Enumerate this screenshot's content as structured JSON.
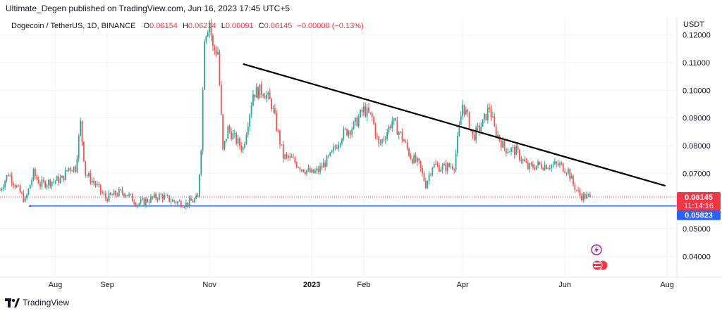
{
  "header": {
    "publisher_line": "Ultimate_Degen published on TradingView.com, Jun 16, 2023 17:45 UTC+5"
  },
  "legend": {
    "symbol": "Dogecoin / TetherUS, 1D, BINANCE",
    "o_label": "O",
    "o_value": "0.06154",
    "h_label": "H",
    "h_value": "0.06214",
    "l_label": "L",
    "l_value": "0.06091",
    "c_label": "C",
    "c_value": "0.06145",
    "change": "−0.00008 (−0.13%)"
  },
  "price_scale": {
    "currency": "USDT",
    "ticks": [
      "0.12000",
      "0.11000",
      "0.10000",
      "0.09000",
      "0.08000",
      "0.07000",
      "0.05000",
      "0.04000"
    ]
  },
  "last_price": {
    "price": "0.06145",
    "countdown": "11:14:16"
  },
  "support_label": "0.05823",
  "time_axis": {
    "labels": [
      "Aug",
      "Sep",
      "Nov",
      "2023",
      "Feb",
      "Apr",
      "Jun",
      "Aug"
    ],
    "emphasized": "2023"
  },
  "footer": {
    "brand": "TradingView"
  },
  "colors": {
    "up": "#26a69a",
    "down": "#ef5350",
    "support": "#2962ff",
    "trendline": "#000000",
    "last_price": "#f23645",
    "event_purple": "#9c27b0"
  },
  "chart_data": {
    "type": "candlestick",
    "title": "Dogecoin / TetherUS, 1D, BINANCE",
    "ylabel": "USDT",
    "ylim": [
      0.0325,
      0.1265
    ],
    "y_ticks": [
      0.12,
      0.11,
      0.1,
      0.09,
      0.08,
      0.07,
      0.05,
      0.04
    ],
    "x_range": [
      "2022-06-29",
      "2023-08-06"
    ],
    "x_ticks": [
      {
        "label": "Aug",
        "date": "2022-08-01"
      },
      {
        "label": "Sep",
        "date": "2022-09-01"
      },
      {
        "label": "Nov",
        "date": "2022-11-01"
      },
      {
        "label": "2023",
        "date": "2023-01-01"
      },
      {
        "label": "Feb",
        "date": "2023-02-01"
      },
      {
        "label": "Apr",
        "date": "2023-04-01"
      },
      {
        "label": "Jun",
        "date": "2023-06-01"
      },
      {
        "label": "Aug",
        "date": "2023-08-01"
      }
    ],
    "last_close": 0.06145,
    "horizontal_line": {
      "price": 0.05823,
      "from": "2022-07-17"
    },
    "trendline": {
      "from": {
        "date": "2022-11-21",
        "price": 0.1095
      },
      "to": {
        "date": "2023-07-31",
        "price": 0.0655
      }
    },
    "close_path": [
      [
        "2022-06-29",
        0.064
      ],
      [
        "2022-07-04",
        0.07
      ],
      [
        "2022-07-08",
        0.066
      ],
      [
        "2022-07-14",
        0.06
      ],
      [
        "2022-07-19",
        0.07
      ],
      [
        "2022-07-23",
        0.066
      ],
      [
        "2022-07-29",
        0.067
      ],
      [
        "2022-08-05",
        0.068
      ],
      [
        "2022-08-09",
        0.072
      ],
      [
        "2022-08-13",
        0.072
      ],
      [
        "2022-08-16",
        0.088
      ],
      [
        "2022-08-19",
        0.07
      ],
      [
        "2022-08-25",
        0.066
      ],
      [
        "2022-08-31",
        0.061
      ],
      [
        "2022-09-08",
        0.063
      ],
      [
        "2022-09-12",
        0.063
      ],
      [
        "2022-09-19",
        0.059
      ],
      [
        "2022-09-28",
        0.061
      ],
      [
        "2022-10-03",
        0.062
      ],
      [
        "2022-10-10",
        0.06
      ],
      [
        "2022-10-18",
        0.059
      ],
      [
        "2022-10-25",
        0.061
      ],
      [
        "2022-10-27",
        0.08
      ],
      [
        "2022-10-29",
        0.12
      ],
      [
        "2022-11-01",
        0.125
      ],
      [
        "2022-11-03",
        0.115
      ],
      [
        "2022-11-06",
        0.114
      ],
      [
        "2022-11-09",
        0.078
      ],
      [
        "2022-11-12",
        0.086
      ],
      [
        "2022-11-18",
        0.081
      ],
      [
        "2022-11-21",
        0.079
      ],
      [
        "2022-11-27",
        0.099
      ],
      [
        "2022-12-03",
        0.1
      ],
      [
        "2022-12-08",
        0.095
      ],
      [
        "2022-12-15",
        0.076
      ],
      [
        "2022-12-20",
        0.075
      ],
      [
        "2022-12-26",
        0.072
      ],
      [
        "2023-01-01",
        0.07
      ],
      [
        "2023-01-05",
        0.071
      ],
      [
        "2023-01-12",
        0.076
      ],
      [
        "2023-01-19",
        0.084
      ],
      [
        "2023-01-26",
        0.087
      ],
      [
        "2023-02-01",
        0.093
      ],
      [
        "2023-02-06",
        0.09
      ],
      [
        "2023-02-10",
        0.08
      ],
      [
        "2023-02-14",
        0.084
      ],
      [
        "2023-02-18",
        0.089
      ],
      [
        "2023-02-24",
        0.083
      ],
      [
        "2023-03-01",
        0.076
      ],
      [
        "2023-03-06",
        0.073
      ],
      [
        "2023-03-10",
        0.066
      ],
      [
        "2023-03-14",
        0.073
      ],
      [
        "2023-03-20",
        0.072
      ],
      [
        "2023-03-27",
        0.073
      ],
      [
        "2023-04-01",
        0.095
      ],
      [
        "2023-04-04",
        0.09
      ],
      [
        "2023-04-07",
        0.083
      ],
      [
        "2023-04-13",
        0.088
      ],
      [
        "2023-04-17",
        0.094
      ],
      [
        "2023-04-20",
        0.086
      ],
      [
        "2023-04-26",
        0.079
      ],
      [
        "2023-05-03",
        0.078
      ],
      [
        "2023-05-10",
        0.072
      ],
      [
        "2023-05-16",
        0.073
      ],
      [
        "2023-05-23",
        0.073
      ],
      [
        "2023-05-29",
        0.073
      ],
      [
        "2023-06-03",
        0.071
      ],
      [
        "2023-06-06",
        0.066
      ],
      [
        "2023-06-10",
        0.062
      ],
      [
        "2023-06-14",
        0.0615
      ],
      [
        "2023-06-16",
        0.0615
      ]
    ]
  }
}
